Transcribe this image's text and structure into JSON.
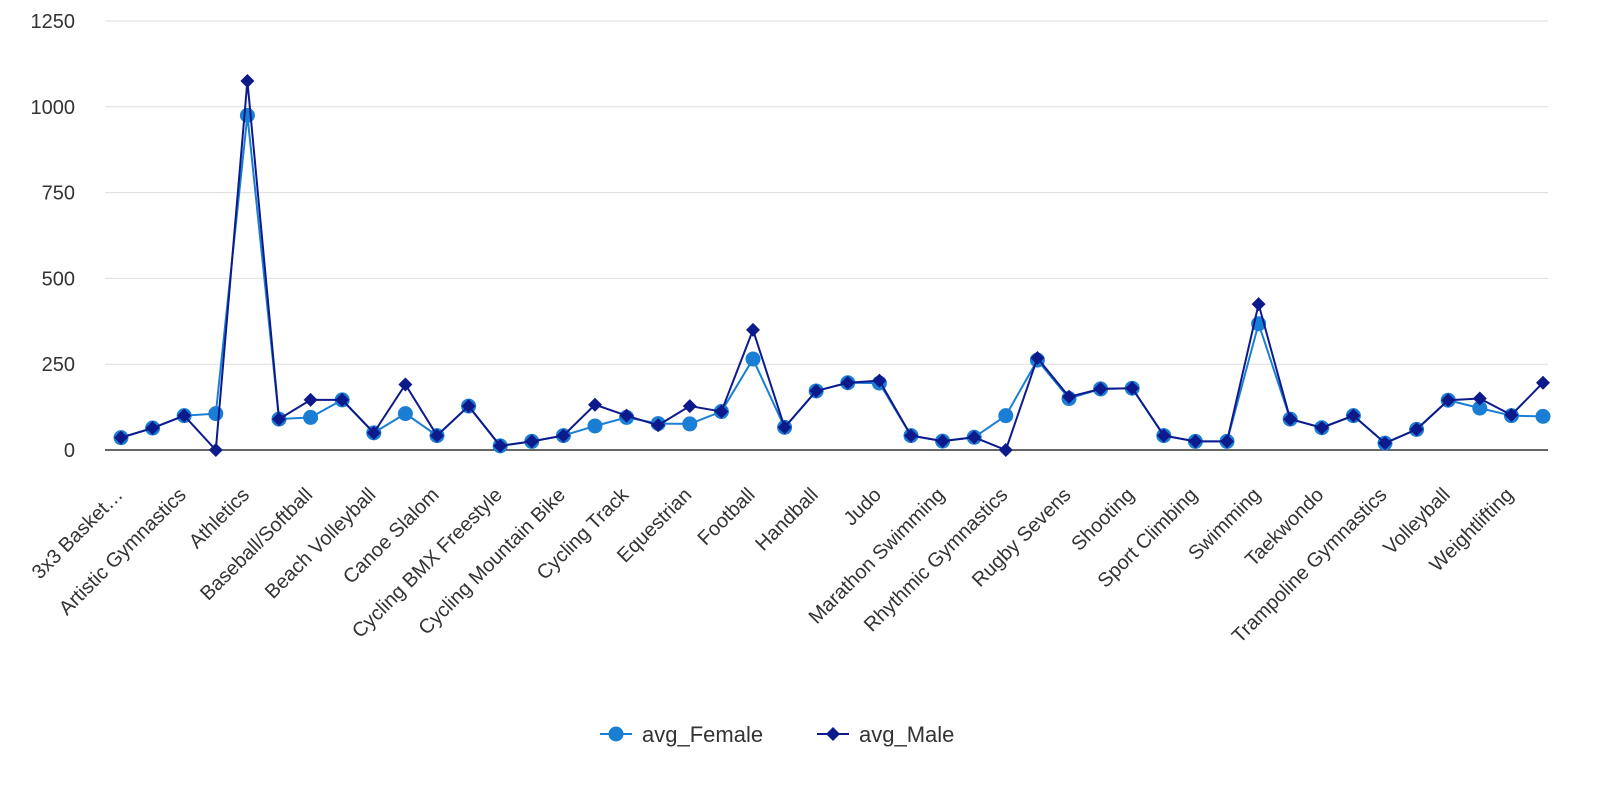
{
  "chart_data": {
    "type": "line",
    "title": "",
    "xlabel": "",
    "ylabel": "",
    "ylim": [
      0,
      1250
    ],
    "yticks": [
      0,
      250,
      500,
      750,
      1000,
      1250
    ],
    "grid": true,
    "legend_position": "bottom",
    "categories": [
      "3x3 Basket…",
      "",
      "Artistic Gymnastics",
      "",
      "Athletics",
      "",
      "Baseball/Softball",
      "",
      "Beach Volleyball",
      "",
      "Canoe Slalom",
      "",
      "Cycling BMX Freestyle",
      "",
      "Cycling Mountain Bike",
      "",
      "Cycling Track",
      "",
      "Equestrian",
      "",
      "Football",
      "",
      "Handball",
      "",
      "Judo",
      "",
      "Marathon Swimming",
      "",
      "Rhythmic Gymnastics",
      "",
      "Rugby Sevens",
      "",
      "Shooting",
      "",
      "Sport Climbing",
      "",
      "Swimming",
      "",
      "Taekwondo",
      "",
      "Trampoline Gymnastics",
      "",
      "Volleyball",
      "",
      "Weightlifting",
      ""
    ],
    "series": [
      {
        "name": "avg_Female",
        "color": "#1a7fd4",
        "marker": "circle",
        "values": [
          36,
          64,
          100,
          106,
          975,
          90,
          95,
          146,
          50,
          106,
          42,
          128,
          12,
          25,
          42,
          70,
          95,
          77,
          76,
          112,
          265,
          66,
          172,
          196,
          195,
          42,
          26,
          37,
          100,
          262,
          150,
          178,
          180,
          42,
          25,
          25,
          368,
          90,
          65,
          100,
          20,
          60,
          145,
          122,
          100,
          98
        ]
      },
      {
        "name": "avg_Male",
        "color": "#0d1a8c",
        "marker": "diamond",
        "values": [
          36,
          64,
          100,
          0,
          1075,
          90,
          146,
          146,
          50,
          191,
          42,
          128,
          12,
          25,
          42,
          132,
          100,
          72,
          128,
          112,
          350,
          66,
          172,
          196,
          202,
          42,
          26,
          37,
          0,
          268,
          155,
          178,
          180,
          42,
          25,
          25,
          425,
          90,
          65,
          100,
          20,
          60,
          145,
          150,
          102,
          196
        ]
      }
    ]
  }
}
